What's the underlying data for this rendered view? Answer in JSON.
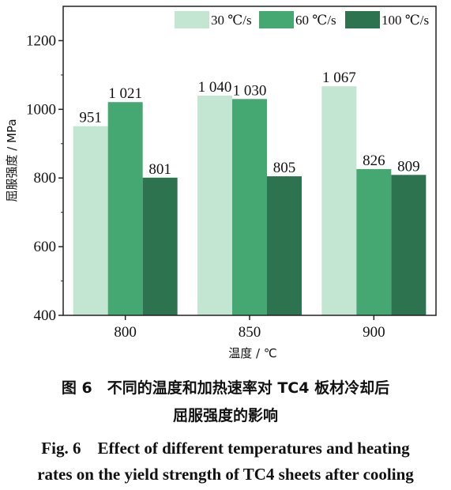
{
  "chart_data": {
    "type": "bar",
    "categories": [
      "800",
      "850",
      "900"
    ],
    "series": [
      {
        "name": "30 ℃/s",
        "values": [
          951,
          1040,
          1067
        ],
        "labels": [
          "951",
          "1 040",
          "1 067"
        ],
        "color": "#c3e6d3"
      },
      {
        "name": "60 ℃/s",
        "values": [
          1021,
          1030,
          826
        ],
        "labels": [
          "1 021",
          "1 030",
          "826"
        ],
        "color": "#45a772"
      },
      {
        "name": "100 ℃/s",
        "values": [
          801,
          805,
          809
        ],
        "labels": [
          "801",
          "805",
          "809"
        ],
        "color": "#2e7350"
      }
    ],
    "xlabel": "温度 / ℃",
    "ylabel": "屈服强度 / MPa",
    "ylim": [
      400,
      1300
    ],
    "yticks": [
      400,
      600,
      800,
      1000,
      1200
    ],
    "grid": false,
    "legend_position": "top"
  },
  "caption": {
    "cn_line1": "图 6　不同的温度和加热速率对 TC4 板材冷却后",
    "cn_line2": "屈服强度的影响",
    "en_line1": "Fig. 6　Effect of different temperatures and heating",
    "en_line2": "rates on the yield strength of TC4 sheets after cooling"
  }
}
